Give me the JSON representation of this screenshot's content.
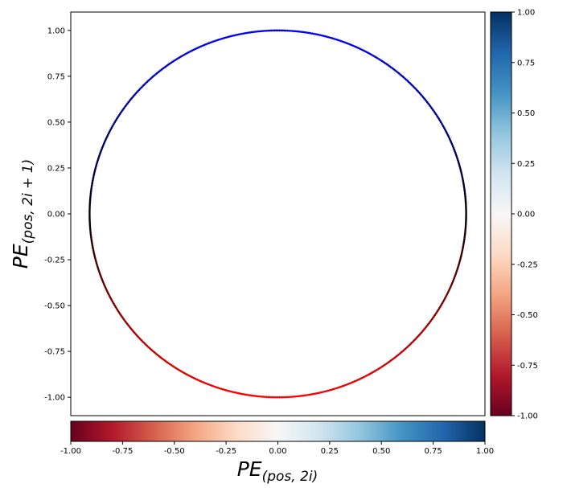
{
  "chart_data": {
    "type": "scatter",
    "title": "",
    "xlabel": "PE(pos, 2i)",
    "ylabel": "PE(pos, 2i + 1)",
    "xlim": [
      -1.1,
      1.1
    ],
    "ylim": [
      -1.1,
      1.1
    ],
    "grid": false,
    "description_of_points": "points lie on the unit circle x = sin(t), y = cos(t)",
    "point_count": 720,
    "color_by": "y",
    "colormap": "RdBu",
    "colormap_stops": [
      "#67001f",
      "#b2182b",
      "#d6604d",
      "#f4a582",
      "#fddbc7",
      "#f7f7f7",
      "#d1e5f0",
      "#92c5de",
      "#4393c3",
      "#2166ac",
      "#053061"
    ],
    "scatter_colormap_stops": [
      "#ff0000",
      "#000000",
      "#0000ff"
    ],
    "ticks": [
      "-1.00",
      "-0.75",
      "-0.50",
      "-0.25",
      "0.00",
      "0.25",
      "0.50",
      "0.75",
      "1.00"
    ],
    "tick_values": [
      -1.0,
      -0.75,
      -0.5,
      -0.25,
      0.0,
      0.25,
      0.5,
      0.75,
      1.0
    ],
    "colorbar_right": {
      "range": [
        -1.0,
        1.0
      ],
      "ticks": [
        "-1.00",
        "-0.75",
        "-0.50",
        "-0.25",
        "0.00",
        "0.25",
        "0.50",
        "0.75",
        "1.00"
      ]
    },
    "colorbar_bottom": {
      "range": [
        -1.0,
        1.0
      ],
      "ticks": [
        "-1.00",
        "-0.75",
        "-0.50",
        "-0.25",
        "0.00",
        "0.25",
        "0.50",
        "0.75",
        "1.00"
      ]
    }
  }
}
